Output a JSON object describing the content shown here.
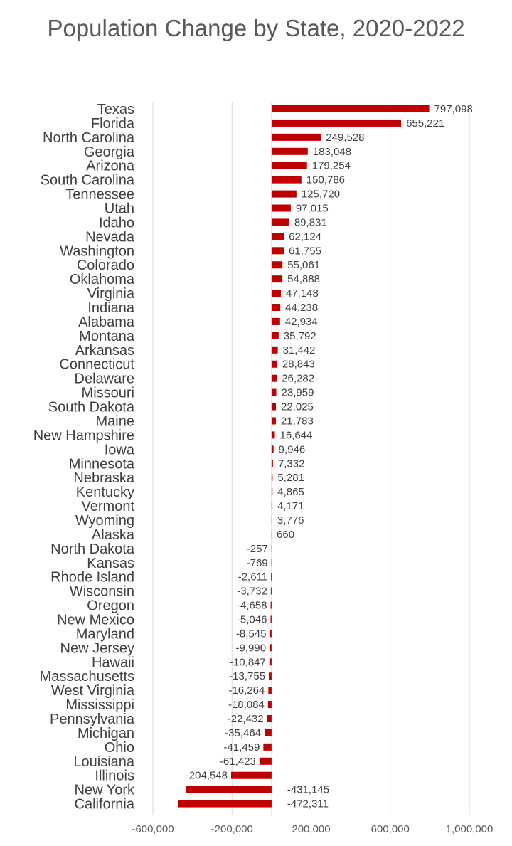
{
  "chart_data": {
    "type": "bar",
    "orientation": "horizontal",
    "title": "Population Change by State, 2020-2022",
    "xlabel": "",
    "ylabel": "",
    "xlim": [
      -600000,
      1000000
    ],
    "x_ticks": [
      -600000,
      -200000,
      200000,
      600000,
      1000000
    ],
    "x_tick_labels": [
      "-600,000",
      "-200,000",
      "200,000",
      "600,000",
      "1,000,000"
    ],
    "grid": "vertical",
    "bar_color": "#c00000",
    "categories": [
      "Texas",
      "Florida",
      "North Carolina",
      "Georgia",
      "Arizona",
      "South Carolina",
      "Tennessee",
      "Utah",
      "Idaho",
      "Nevada",
      "Washington",
      "Colorado",
      "Oklahoma",
      "Virginia",
      "Indiana",
      "Alabama",
      "Montana",
      "Arkansas",
      "Connecticut",
      "Delaware",
      "Missouri",
      "South Dakota",
      "Maine",
      "New Hampshire",
      "Iowa",
      "Minnesota",
      "Nebraska",
      "Kentucky",
      "Vermont",
      "Wyoming",
      "Alaska",
      "North Dakota",
      "Kansas",
      "Rhode Island",
      "Wisconsin",
      "Oregon",
      "New Mexico",
      "Maryland",
      "New Jersey",
      "Hawaii",
      "Massachusetts",
      "West Virginia",
      "Mississippi",
      "Pennsylvania",
      "Michigan",
      "Ohio",
      "Louisiana",
      "Illinois",
      "New York",
      "California"
    ],
    "values": [
      797098,
      655221,
      249528,
      183048,
      179254,
      150786,
      125720,
      97015,
      89831,
      62124,
      61755,
      55061,
      54888,
      47148,
      44238,
      42934,
      35792,
      31442,
      28843,
      26282,
      23959,
      22025,
      21783,
      16644,
      9946,
      7332,
      5281,
      4865,
      4171,
      3776,
      660,
      -257,
      -769,
      -2611,
      -3732,
      -4658,
      -5046,
      -8545,
      -9990,
      -10847,
      -13755,
      -16264,
      -18084,
      -22432,
      -35464,
      -41459,
      -61423,
      -204548,
      -431145,
      -472311
    ],
    "value_labels": [
      "797,098",
      "655,221",
      "249,528",
      "183,048",
      "179,254",
      "150,786",
      "125,720",
      "97,015",
      "89,831",
      "62,124",
      "61,755",
      "55,061",
      "54,888",
      "47,148",
      "44,238",
      "42,934",
      "35,792",
      "31,442",
      "28,843",
      "26,282",
      "23,959",
      "22,025",
      "21,783",
      "16,644",
      "9,946",
      "7,332",
      "5,281",
      "4,865",
      "4,171",
      "3,776",
      "660",
      "-257",
      "-769",
      "-2,611",
      "-3,732",
      "-4,658",
      "-5,046",
      "-8,545",
      "-9,990",
      "-10,847",
      "-13,755",
      "-16,264",
      "-18,084",
      "-22,432",
      "-35,464",
      "-41,459",
      "-61,423",
      "-204,548",
      "-431,145",
      "-472,311"
    ]
  }
}
